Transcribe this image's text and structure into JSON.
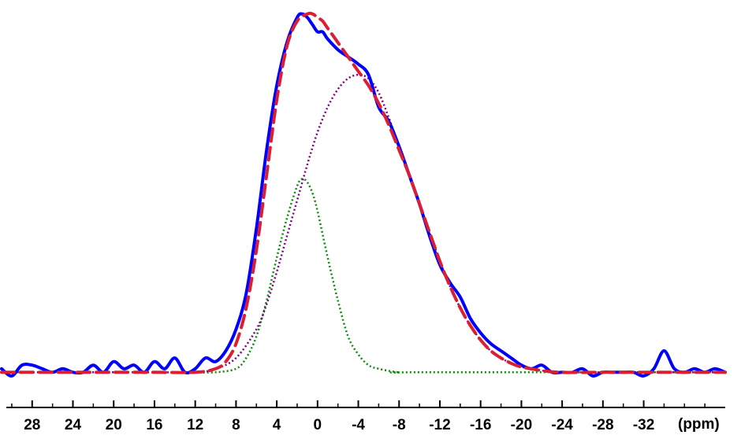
{
  "chart_data": {
    "type": "line",
    "title": "",
    "xlabel": "(ppm)",
    "ylabel": "",
    "x_reversed": true,
    "xlim": [
      31,
      -40
    ],
    "ylim": [
      -0.03,
      1.03
    ],
    "x_ticks": [
      28,
      24,
      20,
      16,
      12,
      8,
      4,
      0,
      -4,
      -8,
      -12,
      -16,
      -20,
      -24,
      -28,
      -32
    ],
    "x_tick_labels": [
      "28",
      "24",
      "20",
      "16",
      "12",
      "8",
      "4",
      "0",
      "-4",
      "-8",
      "-12",
      "-16",
      "-20",
      "-24",
      "-28",
      "-32"
    ],
    "grid": false,
    "legend": "none",
    "colors": {
      "experimental": "#0000ff",
      "fit": "#dc1e32",
      "component_narrow": "#0a8c0a",
      "component_broad": "#800080",
      "axis": "#000000"
    },
    "series": [
      {
        "style": "solid",
        "x": [
          31,
          30,
          29,
          28,
          27,
          26,
          25,
          24,
          23,
          22,
          21,
          20,
          19,
          18,
          17,
          16,
          15,
          14,
          13,
          12,
          11,
          10,
          9,
          8,
          7,
          6,
          5,
          4,
          3,
          2,
          1.5,
          1,
          0.5,
          0,
          -0.5,
          -1,
          -2,
          -3,
          -4,
          -5,
          -6,
          -7,
          -8,
          -9,
          -10,
          -11,
          -12,
          -13,
          -14,
          -15,
          -16,
          -17,
          -18,
          -19,
          -20,
          -21,
          -22,
          -23,
          -24,
          -25,
          -26,
          -27,
          -28,
          -29,
          -30,
          -31,
          -32,
          -33,
          -34,
          -35,
          -36,
          -37,
          -38,
          -39,
          -40
        ],
        "y": [
          0.01,
          -0.01,
          0.02,
          0.02,
          0.01,
          0.0,
          0.01,
          0.0,
          0.0,
          0.02,
          0.0,
          0.03,
          0.01,
          0.02,
          0.0,
          0.03,
          0.01,
          0.04,
          0.0,
          0.01,
          0.04,
          0.03,
          0.06,
          0.12,
          0.22,
          0.4,
          0.62,
          0.8,
          0.92,
          0.99,
          1.0,
          0.99,
          0.97,
          0.95,
          0.95,
          0.93,
          0.9,
          0.88,
          0.86,
          0.83,
          0.74,
          0.7,
          0.63,
          0.55,
          0.47,
          0.38,
          0.3,
          0.25,
          0.21,
          0.15,
          0.11,
          0.08,
          0.06,
          0.04,
          0.02,
          0.01,
          0.02,
          0.0,
          0.0,
          0.0,
          0.01,
          -0.01,
          0.0,
          0.0,
          0.0,
          0.0,
          -0.01,
          0.01,
          0.06,
          0.01,
          0.0,
          0.01,
          0.0,
          0.01,
          0.0
        ]
      },
      {
        "style": "dashed",
        "x": [
          31,
          28,
          24,
          20,
          16,
          12,
          10,
          9,
          8,
          7,
          6,
          5,
          4,
          3,
          2,
          1,
          0.5,
          0,
          -0.5,
          -1,
          -2,
          -3,
          -4,
          -5,
          -6,
          -7,
          -8,
          -9,
          -10,
          -11,
          -12,
          -13,
          -14,
          -15,
          -16,
          -17,
          -18,
          -19,
          -20,
          -22,
          -24,
          -28,
          -32,
          -36,
          -40
        ],
        "y": [
          0.0,
          0.0,
          0.0,
          0.0,
          0.0,
          0.0,
          0.01,
          0.03,
          0.08,
          0.18,
          0.34,
          0.55,
          0.76,
          0.91,
          0.98,
          1.0,
          1.0,
          0.99,
          0.98,
          0.96,
          0.92,
          0.88,
          0.84,
          0.8,
          0.75,
          0.69,
          0.62,
          0.55,
          0.47,
          0.39,
          0.31,
          0.24,
          0.18,
          0.13,
          0.09,
          0.06,
          0.04,
          0.025,
          0.015,
          0.005,
          0.0,
          0.0,
          0.0,
          0.0,
          0.0
        ]
      },
      {
        "style": "dotted",
        "x": [
          12,
          10,
          8,
          7,
          6,
          5,
          4,
          3,
          2,
          1.5,
          1,
          0.5,
          0,
          -1,
          -2,
          -3,
          -4,
          -5,
          -6,
          -8,
          -10,
          -40
        ],
        "y": [
          0.0,
          0.0,
          0.01,
          0.04,
          0.1,
          0.2,
          0.32,
          0.43,
          0.52,
          0.54,
          0.53,
          0.5,
          0.45,
          0.32,
          0.2,
          0.1,
          0.05,
          0.02,
          0.01,
          0.0,
          0.0,
          0.0
        ]
      },
      {
        "style": "dotted",
        "x": [
          31,
          16,
          12,
          10,
          8,
          6,
          5,
          4,
          3,
          2,
          1,
          0,
          -1,
          -2,
          -3,
          -4,
          -5,
          -6,
          -7,
          -8,
          -9,
          -10,
          -11,
          -12,
          -13,
          -14,
          -15,
          -16,
          -17,
          -18,
          -19,
          -20,
          -22,
          -24,
          -28,
          -40
        ],
        "y": [
          0.0,
          0.0,
          0.0,
          0.01,
          0.04,
          0.12,
          0.19,
          0.28,
          0.38,
          0.48,
          0.58,
          0.67,
          0.74,
          0.79,
          0.82,
          0.83,
          0.82,
          0.78,
          0.71,
          0.63,
          0.55,
          0.47,
          0.39,
          0.31,
          0.24,
          0.18,
          0.13,
          0.09,
          0.06,
          0.04,
          0.025,
          0.015,
          0.005,
          0.0,
          0.0,
          0.0
        ]
      }
    ]
  }
}
